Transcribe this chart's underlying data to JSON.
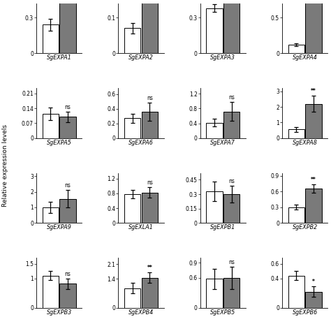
{
  "panels": [
    {
      "name": "SgEXPA1",
      "ylim": [
        0,
        0.42
      ],
      "yticks": [
        0,
        0.3
      ],
      "white_val": 0.24,
      "white_err": 0.05,
      "gray_val": 0.5,
      "gray_err": 0.03,
      "sig": "",
      "clip": true
    },
    {
      "name": "SgEXPA2",
      "ylim": [
        0,
        0.14
      ],
      "yticks": [
        0,
        0.1
      ],
      "white_val": 0.07,
      "white_err": 0.015,
      "gray_val": 0.18,
      "gray_err": 0.015,
      "sig": "",
      "clip": true
    },
    {
      "name": "SgEXPA3",
      "ylim": [
        0,
        0.42
      ],
      "yticks": [
        0,
        0.3
      ],
      "white_val": 0.38,
      "white_err": 0.03,
      "gray_val": 0.48,
      "gray_err": 0.025,
      "sig": "",
      "clip": true
    },
    {
      "name": "SgEXPA4",
      "ylim": [
        0,
        0.7
      ],
      "yticks": [
        0,
        0.5
      ],
      "white_val": 0.12,
      "white_err": 0.02,
      "gray_val": 0.9,
      "gray_err": 0.04,
      "sig": "",
      "clip": true
    },
    {
      "name": "SgEXPA5",
      "ylim": [
        0,
        0.235
      ],
      "yticks": [
        0,
        0.07,
        0.14,
        0.21
      ],
      "white_val": 0.115,
      "white_err": 0.03,
      "gray_val": 0.1,
      "gray_err": 0.025,
      "sig": "ns",
      "clip": false
    },
    {
      "name": "SgEXPA6",
      "ylim": [
        0,
        0.68
      ],
      "yticks": [
        0,
        0.2,
        0.4,
        0.6
      ],
      "white_val": 0.27,
      "white_err": 0.06,
      "gray_val": 0.36,
      "gray_err": 0.12,
      "sig": "ns",
      "clip": false
    },
    {
      "name": "SgEXPA7",
      "ylim": [
        0,
        1.35
      ],
      "yticks": [
        0,
        0.4,
        0.8,
        1.2
      ],
      "white_val": 0.42,
      "white_err": 0.1,
      "gray_val": 0.72,
      "gray_err": 0.25,
      "sig": "ns",
      "clip": false
    },
    {
      "name": "SgEXPA8",
      "ylim": [
        0,
        3.2
      ],
      "yticks": [
        0,
        1,
        2,
        3
      ],
      "white_val": 0.55,
      "white_err": 0.15,
      "gray_val": 2.2,
      "gray_err": 0.5,
      "sig": "**",
      "clip": false
    },
    {
      "name": "SgEXPA9",
      "ylim": [
        0,
        3.2
      ],
      "yticks": [
        0,
        1,
        2,
        3
      ],
      "white_val": 1.0,
      "white_err": 0.35,
      "gray_val": 1.55,
      "gray_err": 0.55,
      "sig": "ns",
      "clip": false
    },
    {
      "name": "SgEXLA1",
      "ylim": [
        0,
        1.35
      ],
      "yticks": [
        0,
        0.4,
        0.8,
        1.2
      ],
      "white_val": 0.78,
      "white_err": 0.12,
      "gray_val": 0.82,
      "gray_err": 0.14,
      "sig": "ns",
      "clip": false
    },
    {
      "name": "SgEXPB1",
      "ylim": [
        0,
        0.52
      ],
      "yticks": [
        0,
        0.15,
        0.3,
        0.45
      ],
      "white_val": 0.33,
      "white_err": 0.1,
      "gray_val": 0.3,
      "gray_err": 0.09,
      "sig": "ns",
      "clip": false
    },
    {
      "name": "SgEXPB2",
      "ylim": [
        0,
        0.95
      ],
      "yticks": [
        0,
        0.3,
        0.6,
        0.9
      ],
      "white_val": 0.3,
      "white_err": 0.05,
      "gray_val": 0.65,
      "gray_err": 0.08,
      "sig": "**",
      "clip": false
    },
    {
      "name": "SgEXPB3",
      "ylim": [
        0,
        1.7
      ],
      "yticks": [
        0,
        1.0,
        1.5
      ],
      "white_val": 1.1,
      "white_err": 0.15,
      "gray_val": 0.82,
      "gray_err": 0.18,
      "sig": "ns",
      "clip": false
    },
    {
      "name": "SgEXPB4",
      "ylim": [
        0,
        2.4
      ],
      "yticks": [
        0,
        1.4,
        2.1
      ],
      "white_val": 0.95,
      "white_err": 0.25,
      "gray_val": 1.45,
      "gray_err": 0.25,
      "sig": "**",
      "clip": false
    },
    {
      "name": "SgEXPB5",
      "ylim": [
        0,
        1.0
      ],
      "yticks": [
        0,
        0.6,
        0.9
      ],
      "white_val": 0.58,
      "white_err": 0.2,
      "gray_val": 0.6,
      "gray_err": 0.22,
      "sig": "ns",
      "clip": false
    },
    {
      "name": "SgEXPB6",
      "ylim": [
        0,
        0.68
      ],
      "yticks": [
        0,
        0.4,
        0.6
      ],
      "white_val": 0.44,
      "white_err": 0.06,
      "gray_val": 0.22,
      "gray_err": 0.07,
      "sig": "*",
      "clip": false
    }
  ],
  "white_color": "#FFFFFF",
  "gray_color": "#7a7a7a",
  "bar_edge_color": "#000000",
  "ylabel": "Relative expression levels",
  "nrows": 4,
  "ncols": 4
}
